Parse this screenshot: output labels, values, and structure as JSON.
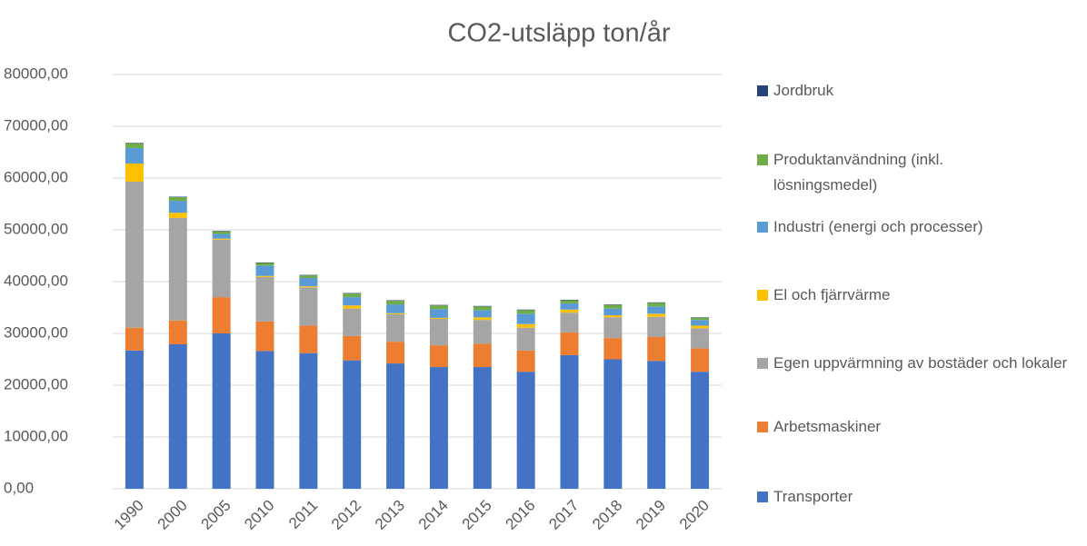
{
  "chart_data": {
    "type": "stacked_bar",
    "title": "CO2-utsläpp ton/år",
    "categories": [
      "1990",
      "2000",
      "2005",
      "2010",
      "2011",
      "2012",
      "2013",
      "2014",
      "2015",
      "2016",
      "2017",
      "2018",
      "2019",
      "2020"
    ],
    "series": [
      {
        "name": "Transporter",
        "color": "#4472c4",
        "values": [
          26700,
          27900,
          30000,
          26600,
          26200,
          24800,
          24200,
          23500,
          23500,
          22600,
          25800,
          25000,
          24700,
          22600
        ]
      },
      {
        "name": "Arbetsmaskiner",
        "color": "#ed7d31",
        "values": [
          4400,
          4600,
          7000,
          5700,
          5300,
          4700,
          4200,
          4200,
          4500,
          4100,
          4400,
          4100,
          4600,
          4500
        ]
      },
      {
        "name": "Egen uppvärmning av bostäder och lokaler",
        "color": "#a5a5a5",
        "values": [
          28200,
          19800,
          11100,
          8600,
          7400,
          5300,
          5300,
          5100,
          4600,
          4400,
          3800,
          4000,
          3900,
          3900
        ]
      },
      {
        "name": "El och fjärrvärme",
        "color": "#ffc000",
        "values": [
          3500,
          1000,
          200,
          200,
          200,
          600,
          200,
          200,
          500,
          700,
          600,
          400,
          600,
          500
        ]
      },
      {
        "name": "Industri (energi och processer)",
        "color": "#5b9bd5",
        "values": [
          3000,
          2300,
          900,
          2000,
          1600,
          1600,
          1700,
          1700,
          1400,
          2000,
          1200,
          1300,
          1400,
          1100
        ]
      },
      {
        "name": "Produktanvändning (inkl. lösningsmedel)",
        "color": "#70ad47",
        "values": [
          900,
          700,
          500,
          500,
          500,
          700,
          700,
          700,
          700,
          700,
          600,
          700,
          700,
          400
        ]
      },
      {
        "name": "Jordbruk",
        "color": "#264478",
        "values": [
          100,
          100,
          100,
          100,
          100,
          100,
          100,
          100,
          100,
          100,
          100,
          100,
          100,
          100
        ]
      }
    ],
    "ylim": [
      0,
      80000
    ],
    "yticks": [
      {
        "value": 0,
        "label": "0,00"
      },
      {
        "value": 10000,
        "label": "10000,00"
      },
      {
        "value": 20000,
        "label": "20000,00"
      },
      {
        "value": 30000,
        "label": "30000,00"
      },
      {
        "value": 40000,
        "label": "40000,00"
      },
      {
        "value": 50000,
        "label": "50000,00"
      },
      {
        "value": 60000,
        "label": "60000,00"
      },
      {
        "value": 70000,
        "label": "70000,00"
      },
      {
        "value": 80000,
        "label": "80000,00"
      }
    ],
    "grid": true,
    "legend": "right"
  }
}
